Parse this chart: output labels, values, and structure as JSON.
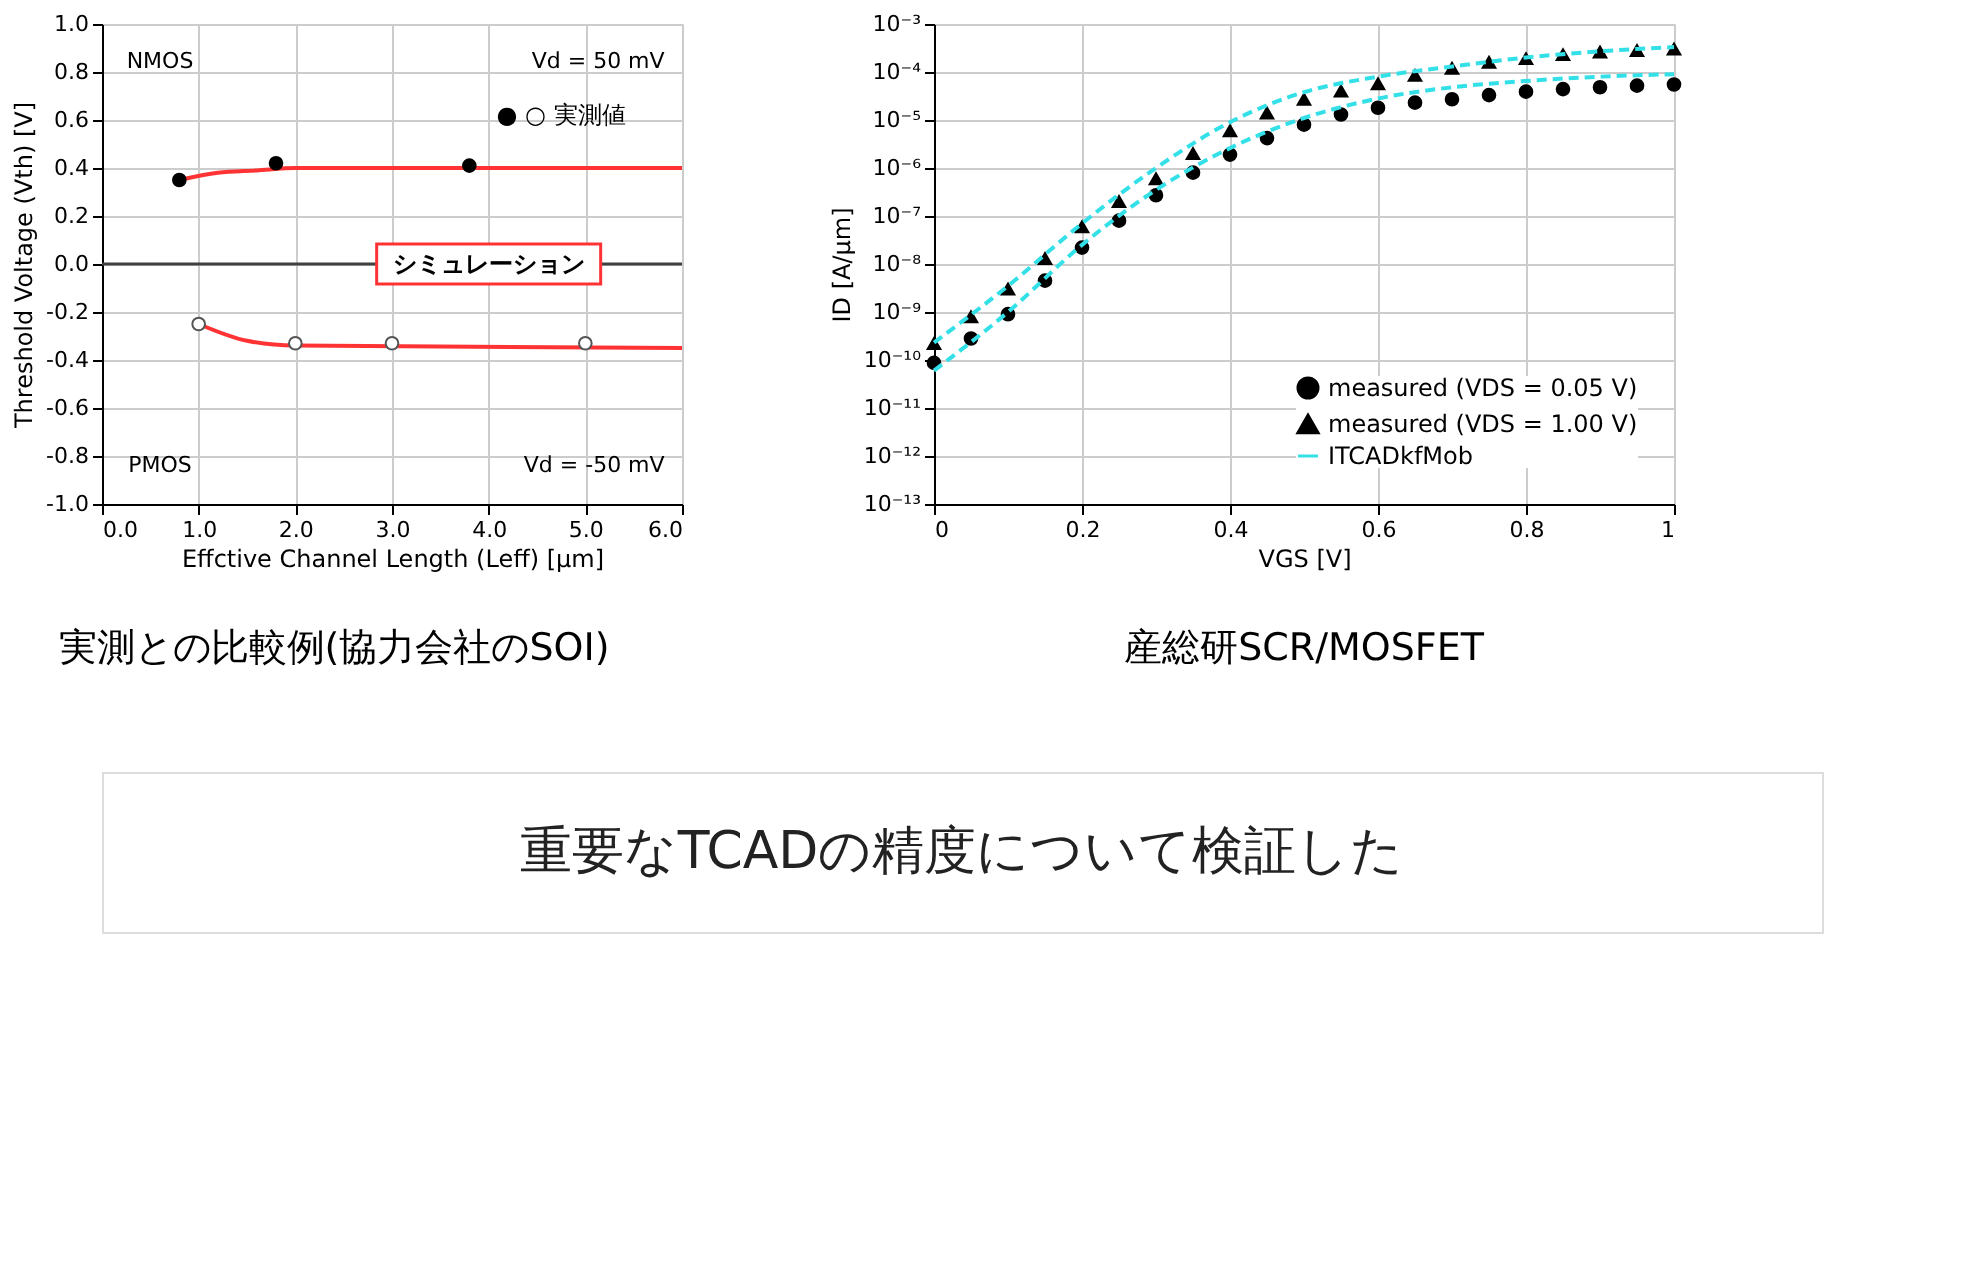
{
  "chart_data": [
    {
      "type": "scatter",
      "xlabel": "Effctive Channel Length (Leff) [µm]",
      "ylabel": "Threshold Voltage (Vth) [V]",
      "xlim": [
        0,
        6
      ],
      "ylim": [
        -1,
        1
      ],
      "xticks": [
        {
          "value": 0,
          "label": "0.0"
        },
        {
          "value": 1,
          "label": "1.0"
        },
        {
          "value": 2,
          "label": "2.0"
        },
        {
          "value": 3,
          "label": "3.0"
        },
        {
          "value": 4,
          "label": "4.0"
        },
        {
          "value": 5,
          "label": "5.0"
        },
        {
          "value": 6,
          "label": "6.0"
        }
      ],
      "yticks": [
        {
          "value": -1,
          "label": "-1.0"
        },
        -0.8,
        -0.6,
        -0.4,
        -0.2,
        {
          "value": 0,
          "label": "0.0"
        },
        0.2,
        0.4,
        0.6,
        0.8,
        {
          "value": 1,
          "label": "1.0"
        }
      ],
      "grid": true,
      "series": [
        {
          "type": "line",
          "color": "#ff3333",
          "x": [
            0.8,
            1.2,
            1.6,
            2.0,
            6.0
          ],
          "values": [
            0.35,
            0.38,
            0.39,
            0.4,
            0.4
          ]
        },
        {
          "type": "line",
          "color": "#ff3333",
          "x": [
            1.0,
            1.5,
            2.0,
            6.0
          ],
          "values": [
            -0.25,
            -0.32,
            -0.34,
            -0.35
          ]
        },
        {
          "color": "#000000",
          "marker": "circle",
          "x": [
            0.8,
            1.8,
            3.8
          ],
          "values": [
            0.35,
            0.42,
            0.41
          ]
        },
        {
          "color": "#ffffff",
          "marker": "circle",
          "x": [
            1.0,
            2.0,
            3.0,
            5.0
          ],
          "values": [
            -0.25,
            -0.33,
            -0.33,
            -0.33
          ]
        }
      ],
      "ref_lines": [
        {
          "axis": "y",
          "value": 0,
          "color": "#404040"
        }
      ],
      "annotations": [
        "NMOS",
        "Vd = 50 mV",
        "● ○ 実測値",
        {
          "text": "シミュレーション",
          "x": 4.0,
          "y": 0.0
        },
        "PMOS",
        "Vd = -50 mV",
        "実測との比較例(協力会社のSOI)"
      ]
    },
    {
      "type": "scatter",
      "xlabel": "VGS [V]",
      "ylabel": "ID [A/µm]",
      "log": "y",
      "xlim": [
        0,
        1
      ],
      "ylim": [
        1e-13,
        0.001
      ],
      "xticks": [
        0,
        0.2,
        0.4,
        0.6,
        0.8,
        1
      ],
      "tick_labels": true,
      "yticks": [
        {
          "value": 1e-13,
          "label": "10⁻¹³"
        },
        {
          "value": 1e-12,
          "label": "10⁻¹²"
        },
        {
          "value": 1e-11,
          "label": "10⁻¹¹"
        },
        {
          "value": 1e-10,
          "label": "10⁻¹⁰"
        },
        {
          "value": 1e-09,
          "label": "10⁻⁹"
        },
        {
          "value": 1e-08,
          "label": "10⁻⁸"
        },
        {
          "value": 1e-07,
          "label": "10⁻⁷"
        },
        {
          "value": 1e-06,
          "label": "10⁻⁶"
        },
        {
          "value": 1e-05,
          "label": "10⁻⁵"
        },
        {
          "value": 0.0001,
          "label": "10⁻⁴"
        },
        {
          "value": 0.001,
          "label": "10⁻³"
        }
      ],
      "grid": true,
      "legend": "bottom right",
      "x": [
        0,
        0.05,
        0.1,
        0.15,
        0.2,
        0.25,
        0.3,
        0.35,
        0.4,
        0.45,
        0.5,
        0.55,
        0.6,
        0.65,
        0.7,
        0.75,
        0.8,
        0.85,
        0.9,
        0.95,
        1.0
      ],
      "series": [
        {
          "name": "measured (VDS = 0.05 V)",
          "color": "#000000",
          "marker": "circle",
          "values": [
            8.7e-11,
            2.8e-10,
            9e-10,
            4.5e-09,
            2.2e-08,
            8e-08,
            2.7e-07,
            8e-07,
            1.9e-06,
            4.2e-06,
            8e-06,
            1.3e-05,
            1.8e-05,
            2.3e-05,
            2.7e-05,
            3.3e-05,
            3.9e-05,
            4.4e-05,
            4.8e-05,
            5.2e-05,
            5.5e-05
          ]
        },
        {
          "name": "measured (VDS = 1.00 V)",
          "color": "#000000",
          "marker": "triangle",
          "values": [
            2.2e-10,
            8e-10,
            3e-09,
            1.3e-08,
            6e-08,
            2e-07,
            6e-07,
            2e-06,
            6e-06,
            1.4e-05,
            2.7e-05,
            4e-05,
            5.7e-05,
            8.5e-05,
            0.00012,
            0.00016,
            0.00019,
            0.00023,
            0.00026,
            0.00028,
            0.0003
          ]
        },
        {
          "name": "ITCADkfMob",
          "type": "line",
          "line_style": "dashed",
          "color": "#33e0e8",
          "x": [
            0,
            0.1,
            0.2,
            0.3,
            0.4,
            0.5,
            0.6,
            0.7,
            0.8,
            0.9,
            1.0
          ],
          "values": [
            2.3e-10,
            3.5e-09,
            7e-08,
            1e-06,
            9e-06,
            3.8e-05,
            8e-05,
            0.00013,
            0.0002,
            0.00027,
            0.00033
          ]
        },
        {
          "type": "line",
          "line_style": "dashed",
          "color": "#33e0e8",
          "x": [
            0,
            0.1,
            0.2,
            0.3,
            0.4,
            0.5,
            0.6,
            0.7,
            0.8,
            0.9,
            1.0
          ],
          "values": [
            6e-11,
            1e-09,
            2.5e-08,
            3.5e-07,
            2.6e-06,
            1.1e-05,
            2.8e-05,
            4.8e-05,
            6.5e-05,
            8e-05,
            9e-05
          ]
        }
      ],
      "annotations": [
        "産総研SCR/MOSFET"
      ]
    },
    {
      "type": "other",
      "annotations": [
        "重要なTCADの精度について検証した"
      ]
    }
  ]
}
